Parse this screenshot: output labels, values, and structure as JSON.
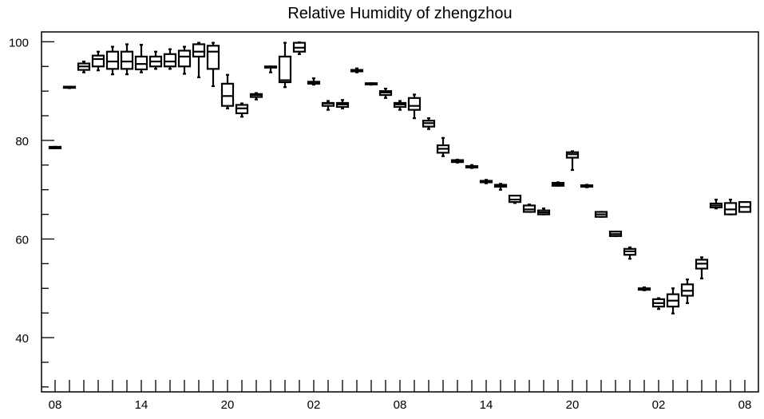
{
  "chart_data": {
    "type": "box",
    "title": "Relative Humidity of zhengzhou",
    "xlabel": "",
    "ylabel": "",
    "ylim": [
      29,
      102
    ],
    "y_ticks_major": [
      40,
      60,
      80,
      100
    ],
    "y_tick_labels": [
      "40",
      "60",
      "80",
      "100"
    ],
    "y_tick_minor_step": 5,
    "x_tick_count": 49,
    "x_tick_labels": [
      {
        "index": 0,
        "label": "08"
      },
      {
        "index": 6,
        "label": "14"
      },
      {
        "index": 12,
        "label": "20"
      },
      {
        "index": 18,
        "label": "02"
      },
      {
        "index": 24,
        "label": "08"
      },
      {
        "index": 30,
        "label": "14"
      },
      {
        "index": 36,
        "label": "20"
      },
      {
        "index": 42,
        "label": "02"
      },
      {
        "index": 48,
        "label": "08"
      }
    ],
    "grid": false,
    "boxes": [
      {
        "i": 0,
        "min": 78.4,
        "q1": 78.4,
        "median": 78.6,
        "q3": 78.7,
        "max": 78.7
      },
      {
        "i": 1,
        "min": 90.6,
        "q1": 90.7,
        "median": 90.8,
        "q3": 90.9,
        "max": 90.9
      },
      {
        "i": 2,
        "min": 93.8,
        "q1": 94.3,
        "median": 95.0,
        "q3": 95.6,
        "max": 96.0
      },
      {
        "i": 3,
        "min": 94.2,
        "q1": 95.0,
        "median": 96.5,
        "q3": 97.2,
        "max": 98.0
      },
      {
        "i": 4,
        "min": 93.4,
        "q1": 94.5,
        "median": 96.0,
        "q3": 98.0,
        "max": 99.0
      },
      {
        "i": 5,
        "min": 93.4,
        "q1": 94.5,
        "median": 96.0,
        "q3": 98.0,
        "max": 99.5
      },
      {
        "i": 6,
        "min": 93.8,
        "q1": 94.4,
        "median": 95.5,
        "q3": 97.0,
        "max": 99.4
      },
      {
        "i": 7,
        "min": 94.5,
        "q1": 95.0,
        "median": 96.0,
        "q3": 97.0,
        "max": 98.0
      },
      {
        "i": 8,
        "min": 94.5,
        "q1": 95.0,
        "median": 96.0,
        "q3": 97.5,
        "max": 98.5
      },
      {
        "i": 9,
        "min": 93.5,
        "q1": 95.0,
        "median": 97.0,
        "q3": 98.2,
        "max": 99.0
      },
      {
        "i": 10,
        "min": 92.8,
        "q1": 97.0,
        "median": 98.0,
        "q3": 99.5,
        "max": 99.8
      },
      {
        "i": 11,
        "min": 91.0,
        "q1": 94.5,
        "median": 98.0,
        "q3": 99.2,
        "max": 99.8
      },
      {
        "i": 12,
        "min": 86.5,
        "q1": 87.0,
        "median": 89.0,
        "q3": 91.5,
        "max": 93.3
      },
      {
        "i": 13,
        "min": 84.8,
        "q1": 85.5,
        "median": 86.5,
        "q3": 87.2,
        "max": 87.5
      },
      {
        "i": 14,
        "min": 88.3,
        "q1": 88.8,
        "median": 89.2,
        "q3": 89.4,
        "max": 89.6
      },
      {
        "i": 15,
        "min": 93.8,
        "q1": 94.8,
        "median": 94.9,
        "q3": 95.0,
        "max": 95.0
      },
      {
        "i": 16,
        "min": 90.8,
        "q1": 91.8,
        "median": 92.2,
        "q3": 97.0,
        "max": 99.8
      },
      {
        "i": 17,
        "min": 97.5,
        "q1": 98.0,
        "median": 98.8,
        "q3": 99.8,
        "max": 99.9
      },
      {
        "i": 18,
        "min": 91.3,
        "q1": 91.5,
        "median": 91.7,
        "q3": 91.9,
        "max": 92.6
      },
      {
        "i": 19,
        "min": 86.2,
        "q1": 87.0,
        "median": 87.5,
        "q3": 87.6,
        "max": 88.0
      },
      {
        "i": 20,
        "min": 86.5,
        "q1": 86.8,
        "median": 87.3,
        "q3": 87.6,
        "max": 88.2
      },
      {
        "i": 21,
        "min": 93.8,
        "q1": 94.0,
        "median": 94.2,
        "q3": 94.3,
        "max": 94.6
      },
      {
        "i": 22,
        "min": 91.3,
        "q1": 91.4,
        "median": 91.5,
        "q3": 91.6,
        "max": 91.6
      },
      {
        "i": 23,
        "min": 88.6,
        "q1": 89.2,
        "median": 89.7,
        "q3": 90.0,
        "max": 90.5
      },
      {
        "i": 24,
        "min": 86.2,
        "q1": 86.8,
        "median": 87.3,
        "q3": 87.6,
        "max": 88.0
      },
      {
        "i": 25,
        "min": 84.5,
        "q1": 86.2,
        "median": 87.0,
        "q3": 88.6,
        "max": 89.3
      },
      {
        "i": 26,
        "min": 82.3,
        "q1": 82.8,
        "median": 83.5,
        "q3": 84.0,
        "max": 84.5
      },
      {
        "i": 27,
        "min": 76.8,
        "q1": 77.5,
        "median": 78.3,
        "q3": 79.0,
        "max": 80.5
      },
      {
        "i": 28,
        "min": 75.5,
        "q1": 75.6,
        "median": 75.8,
        "q3": 76.0,
        "max": 76.1
      },
      {
        "i": 29,
        "min": 74.4,
        "q1": 74.5,
        "median": 74.6,
        "q3": 74.8,
        "max": 75.0
      },
      {
        "i": 30,
        "min": 71.3,
        "q1": 71.5,
        "median": 71.7,
        "q3": 71.8,
        "max": 72.0
      },
      {
        "i": 31,
        "min": 70.0,
        "q1": 70.6,
        "median": 70.8,
        "q3": 71.0,
        "max": 71.2
      },
      {
        "i": 32,
        "min": 67.3,
        "q1": 67.5,
        "median": 68.0,
        "q3": 68.8,
        "max": 68.8
      },
      {
        "i": 33,
        "min": 65.5,
        "q1": 65.5,
        "median": 66.0,
        "q3": 66.8,
        "max": 67.0
      },
      {
        "i": 34,
        "min": 65.0,
        "q1": 65.0,
        "median": 65.4,
        "q3": 65.8,
        "max": 66.2
      },
      {
        "i": 35,
        "min": 70.8,
        "q1": 70.8,
        "median": 71.1,
        "q3": 71.4,
        "max": 71.5
      },
      {
        "i": 36,
        "min": 74.0,
        "q1": 76.5,
        "median": 77.2,
        "q3": 77.6,
        "max": 77.8
      },
      {
        "i": 37,
        "min": 70.5,
        "q1": 70.6,
        "median": 70.8,
        "q3": 70.9,
        "max": 71.0
      },
      {
        "i": 38,
        "min": 64.5,
        "q1": 64.5,
        "median": 65.0,
        "q3": 65.5,
        "max": 65.5
      },
      {
        "i": 39,
        "min": 60.6,
        "q1": 60.6,
        "median": 61.0,
        "q3": 61.5,
        "max": 61.5
      },
      {
        "i": 40,
        "min": 56.0,
        "q1": 56.8,
        "median": 57.5,
        "q3": 58.0,
        "max": 58.3
      },
      {
        "i": 41,
        "min": 49.6,
        "q1": 49.7,
        "median": 49.9,
        "q3": 50.0,
        "max": 50.2
      },
      {
        "i": 42,
        "min": 45.8,
        "q1": 46.3,
        "median": 47.0,
        "q3": 47.8,
        "max": 48.0
      },
      {
        "i": 43,
        "min": 44.9,
        "q1": 46.3,
        "median": 47.5,
        "q3": 48.8,
        "max": 50.0
      },
      {
        "i": 44,
        "min": 47.0,
        "q1": 48.5,
        "median": 49.5,
        "q3": 50.8,
        "max": 51.8
      },
      {
        "i": 45,
        "min": 52.0,
        "q1": 54.0,
        "median": 55.0,
        "q3": 55.8,
        "max": 56.3
      },
      {
        "i": 46,
        "min": 66.2,
        "q1": 66.4,
        "median": 66.8,
        "q3": 67.2,
        "max": 68.0
      },
      {
        "i": 47,
        "min": 65.0,
        "q1": 65.0,
        "median": 66.0,
        "q3": 67.3,
        "max": 68.0
      },
      {
        "i": 48,
        "min": 65.5,
        "q1": 65.5,
        "median": 66.5,
        "q3": 67.5,
        "max": 67.5
      }
    ]
  }
}
